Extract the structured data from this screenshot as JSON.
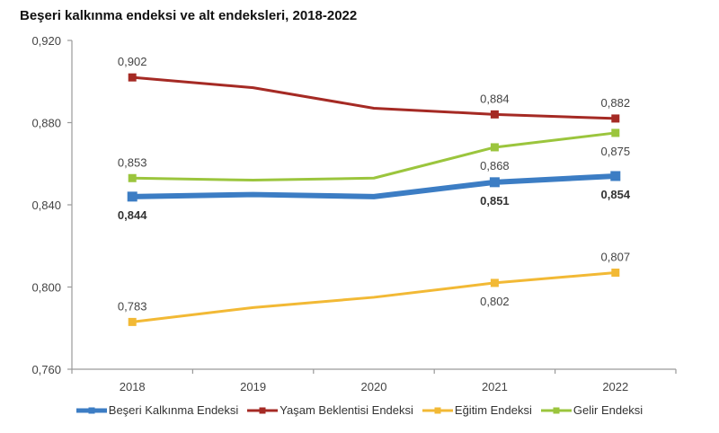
{
  "chart_data": {
    "type": "line",
    "title": "Beşeri kalkınma endeksi ve alt endeksleri, 2018-2022",
    "xlabel": "",
    "ylabel": "",
    "categories": [
      "2018",
      "2019",
      "2020",
      "2021",
      "2022"
    ],
    "ylim": [
      0.76,
      0.92
    ],
    "yticks": [
      0.76,
      0.8,
      0.84,
      0.88,
      0.92
    ],
    "ytick_labels": [
      "0,760",
      "0,800",
      "0,840",
      "0,880",
      "0,920"
    ],
    "grid": false,
    "legend_position": "bottom",
    "series": [
      {
        "name": "Beşeri Kalkınma Endeksi",
        "color": "#3c7dc4",
        "values": [
          0.844,
          0.845,
          0.844,
          0.851,
          0.854
        ],
        "labels": [
          "0,844",
          "",
          "",
          "0,851",
          "0,854"
        ],
        "label_position": "below",
        "label_bold": true,
        "markers": [
          true,
          false,
          false,
          true,
          true
        ]
      },
      {
        "name": "Yaşam Beklentisi Endeksi",
        "color": "#a52a24",
        "values": [
          0.902,
          0.897,
          0.887,
          0.884,
          0.882
        ],
        "labels": [
          "0,902",
          "",
          "",
          "0,884",
          "0,882"
        ],
        "label_position": "above",
        "label_bold": false,
        "markers": [
          true,
          false,
          false,
          true,
          true
        ]
      },
      {
        "name": "Eğitim Endeksi",
        "color": "#f2b935",
        "values": [
          0.783,
          0.79,
          0.795,
          0.802,
          0.807
        ],
        "labels": [
          "0,783",
          "",
          "",
          "0,802",
          "0,807"
        ],
        "label_position": [
          "above",
          "",
          "",
          "below",
          "above"
        ],
        "label_bold": false,
        "markers": [
          true,
          false,
          false,
          true,
          true
        ]
      },
      {
        "name": "Gelir Endeksi",
        "color": "#9bc53d",
        "values": [
          0.853,
          0.852,
          0.853,
          0.868,
          0.875
        ],
        "labels": [
          "0,853",
          "",
          "",
          "0,868",
          "0,875"
        ],
        "label_position": [
          "above",
          "",
          "",
          "below",
          "below"
        ],
        "label_bold": false,
        "markers": [
          true,
          false,
          false,
          true,
          true
        ]
      }
    ]
  }
}
